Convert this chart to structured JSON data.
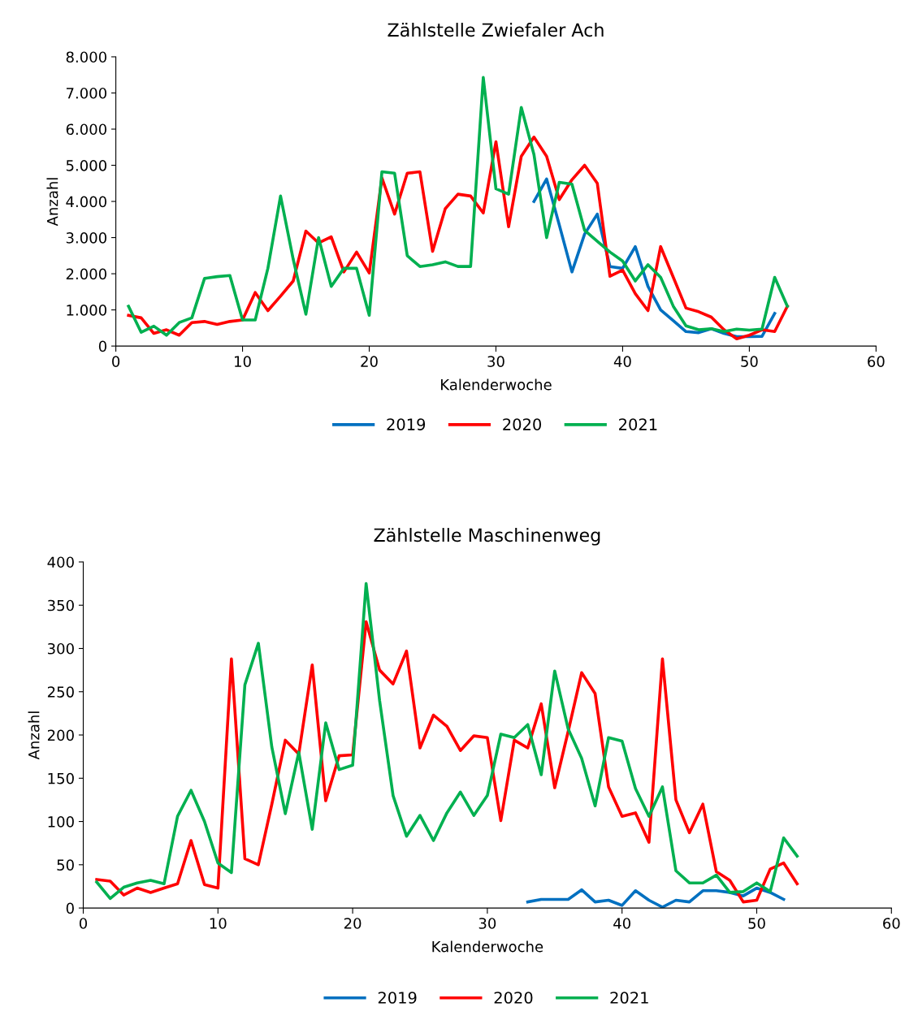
{
  "chart_data": [
    {
      "type": "line",
      "title": "Zählstelle Zwiefaler Ach",
      "xlabel": "Kalenderwoche",
      "ylabel": "Anzahl",
      "legend": "bottom",
      "grid": false,
      "marker": "none",
      "line_style": "solid",
      "xlim": [
        0,
        60
      ],
      "xticks": [
        0,
        10,
        20,
        30,
        40,
        50,
        60
      ],
      "ylim": [
        0,
        8000
      ],
      "yticks": [
        0,
        {
          "value": 1000,
          "label": "1.000"
        },
        {
          "value": 2000,
          "label": "2.000"
        },
        {
          "value": 3000,
          "label": "3.000"
        },
        {
          "value": 4000,
          "label": "4.000"
        },
        {
          "value": 5000,
          "label": "5.000"
        },
        {
          "value": 6000,
          "label": "6.000"
        },
        {
          "value": 7000,
          "label": "7.000"
        },
        {
          "value": 8000,
          "label": "8.000"
        }
      ],
      "series": [
        {
          "name": "2019",
          "color": "#0070c0",
          "x": [
            33,
            34,
            35,
            36,
            37,
            38,
            39,
            40,
            41,
            42,
            43,
            44,
            45,
            46,
            47,
            48,
            49,
            50,
            51,
            52
          ],
          "values": [
            4000,
            4620,
            3350,
            2050,
            3100,
            3650,
            2200,
            2150,
            2750,
            1650,
            1000,
            700,
            400,
            370,
            480,
            350,
            260,
            260,
            270,
            900
          ]
        },
        {
          "name": "2020",
          "color": "#ff0000",
          "x": [
            1,
            2,
            3,
            4,
            5,
            6,
            7,
            8,
            9,
            10,
            11,
            12,
            13,
            14,
            15,
            16,
            17,
            18,
            19,
            20,
            21,
            22,
            23,
            24,
            25,
            26,
            27,
            28,
            29,
            30,
            31,
            32,
            33,
            34,
            35,
            36,
            37,
            38,
            39,
            40,
            41,
            42,
            43,
            44,
            45,
            46,
            47,
            48,
            49,
            50,
            51,
            52,
            53
          ],
          "values": [
            850,
            780,
            350,
            450,
            300,
            650,
            680,
            600,
            680,
            720,
            1480,
            980,
            1380,
            1800,
            3180,
            2850,
            3020,
            2050,
            2600,
            2020,
            4650,
            3650,
            4780,
            4820,
            2620,
            3800,
            4200,
            4150,
            3680,
            5650,
            3300,
            5250,
            5780,
            5250,
            4050,
            4600,
            5000,
            4500,
            1930,
            2100,
            1450,
            980,
            2750,
            1900,
            1050,
            950,
            800,
            450,
            200,
            300,
            450,
            400,
            1100
          ]
        },
        {
          "name": "2021",
          "color": "#00b050",
          "x": [
            1,
            2,
            3,
            4,
            5,
            6,
            7,
            8,
            9,
            10,
            11,
            12,
            13,
            14,
            15,
            16,
            17,
            18,
            19,
            20,
            21,
            22,
            23,
            24,
            25,
            26,
            27,
            28,
            29,
            30,
            31,
            32,
            33,
            34,
            35,
            36,
            37,
            38,
            39,
            40,
            41,
            42,
            43,
            44,
            45,
            46,
            47,
            48,
            49,
            50,
            51,
            52,
            53
          ],
          "values": [
            1100,
            380,
            550,
            300,
            650,
            780,
            1870,
            1920,
            1950,
            720,
            720,
            2150,
            4150,
            2400,
            880,
            3000,
            1650,
            2150,
            2150,
            850,
            4820,
            4780,
            2500,
            2200,
            2250,
            2330,
            2200,
            2200,
            7430,
            4350,
            4200,
            6600,
            5300,
            3000,
            4530,
            4480,
            3200,
            2900,
            2600,
            2350,
            1800,
            2250,
            1900,
            1100,
            560,
            450,
            480,
            400,
            470,
            440,
            470,
            1900,
            1100
          ]
        }
      ]
    },
    {
      "type": "line",
      "title": "Zählstelle Maschinenweg",
      "xlabel": "Kalenderwoche",
      "ylabel": "Anzahl",
      "legend": "bottom",
      "grid": false,
      "marker": "none",
      "line_style": "solid",
      "xlim": [
        0,
        60
      ],
      "xticks": [
        0,
        10,
        20,
        30,
        40,
        50,
        60
      ],
      "ylim": [
        0,
        400
      ],
      "yticks": [
        0,
        50,
        100,
        150,
        200,
        250,
        300,
        350,
        400
      ],
      "series": [
        {
          "name": "2019",
          "color": "#0070c0",
          "x": [
            33,
            34,
            35,
            36,
            37,
            38,
            39,
            40,
            41,
            42,
            43,
            44,
            45,
            46,
            47,
            48,
            49,
            50,
            51,
            52
          ],
          "values": [
            7,
            10,
            10,
            10,
            21,
            7,
            9,
            3,
            20,
            9,
            1,
            9,
            7,
            20,
            20,
            18,
            14,
            23,
            18,
            10
          ]
        },
        {
          "name": "2020",
          "color": "#ff0000",
          "x": [
            1,
            2,
            3,
            4,
            5,
            6,
            7,
            8,
            9,
            10,
            11,
            12,
            13,
            14,
            15,
            16,
            17,
            18,
            19,
            20,
            21,
            22,
            23,
            24,
            25,
            26,
            27,
            28,
            29,
            30,
            31,
            32,
            33,
            34,
            35,
            36,
            37,
            38,
            39,
            40,
            41,
            42,
            43,
            44,
            45,
            46,
            47,
            48,
            49,
            50,
            51,
            52,
            53
          ],
          "values": [
            33,
            31,
            15,
            23,
            18,
            23,
            28,
            78,
            27,
            23,
            288,
            57,
            50,
            120,
            194,
            178,
            281,
            124,
            176,
            177,
            331,
            275,
            259,
            297,
            185,
            223,
            210,
            182,
            199,
            197,
            101,
            194,
            185,
            236,
            139,
            204,
            272,
            248,
            140,
            106,
            110,
            76,
            288,
            125,
            87,
            120,
            42,
            32,
            7,
            9,
            45,
            52,
            28
          ]
        },
        {
          "name": "2021",
          "color": "#00b050",
          "x": [
            1,
            2,
            3,
            4,
            5,
            6,
            7,
            8,
            9,
            10,
            11,
            12,
            13,
            14,
            15,
            16,
            17,
            18,
            19,
            20,
            21,
            22,
            23,
            24,
            25,
            26,
            27,
            28,
            29,
            30,
            31,
            32,
            33,
            34,
            35,
            36,
            37,
            38,
            39,
            40,
            41,
            42,
            43,
            44,
            45,
            46,
            47,
            48,
            49,
            50,
            51,
            52,
            53
          ],
          "values": [
            30,
            11,
            24,
            29,
            32,
            28,
            106,
            136,
            100,
            52,
            41,
            258,
            306,
            186,
            109,
            180,
            91,
            214,
            160,
            165,
            375,
            240,
            130,
            83,
            107,
            78,
            110,
            134,
            107,
            130,
            201,
            197,
            212,
            154,
            274,
            207,
            173,
            118,
            197,
            193,
            138,
            106,
            140,
            43,
            29,
            29,
            38,
            18,
            19,
            29,
            19,
            81,
            60
          ]
        }
      ]
    }
  ]
}
